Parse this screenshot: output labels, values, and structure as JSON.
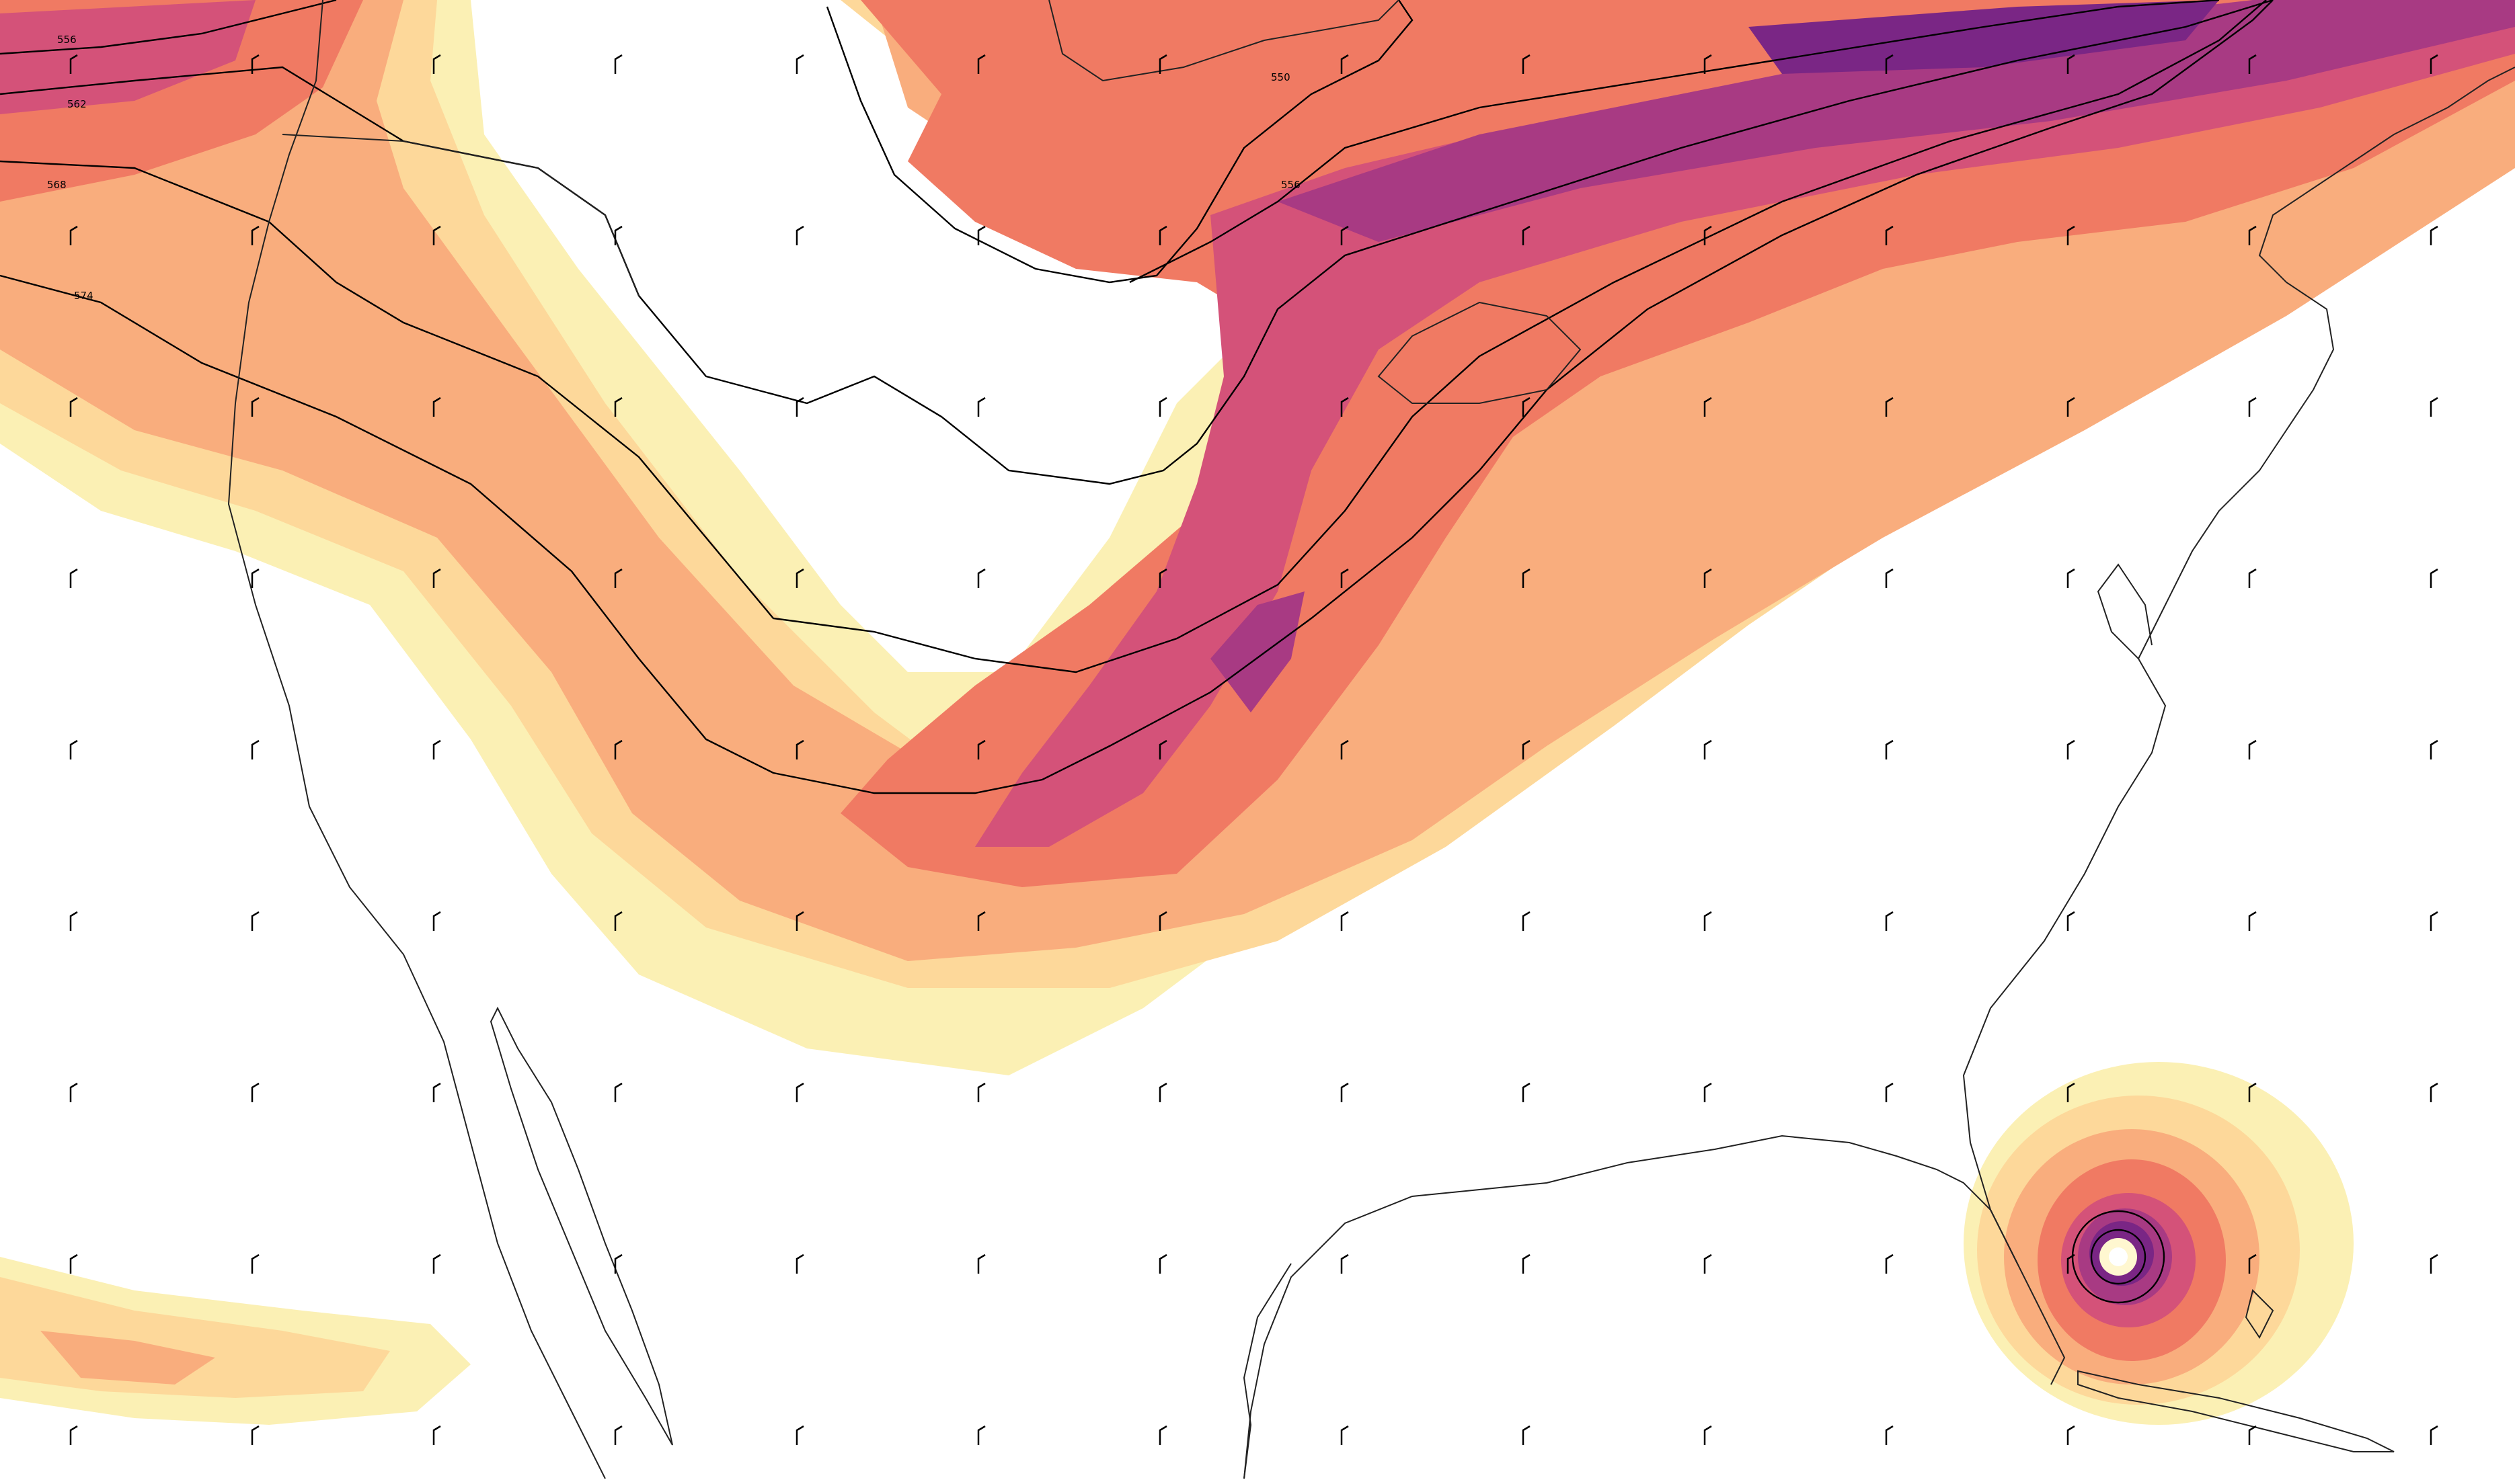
{
  "map": {
    "palette": {
      "band1": "#fbf0b4",
      "band2": "#fdd89a",
      "band3": "#f9ad7d",
      "band4": "#f07a63",
      "band5": "#d45279",
      "band6": "#a83a83",
      "band7": "#7a2685",
      "band8": "#4e1a73",
      "land_line": "#222222",
      "contour_line": "#000000",
      "barb": "#000000"
    },
    "height_contours": [
      {
        "label": "550",
        "data-key": "c550"
      },
      {
        "label": "556",
        "data-key": "c556"
      },
      {
        "label": "556",
        "data-key": "c556w"
      },
      {
        "label": "562",
        "data-key": "c562"
      },
      {
        "label": "568",
        "data-key": "c568"
      },
      {
        "label": "574",
        "data-key": "c574"
      }
    ],
    "features": [
      "jet-stream-band",
      "hurricane",
      "pacific-moisture-plume",
      "wind-barbs",
      "coastlines"
    ]
  }
}
